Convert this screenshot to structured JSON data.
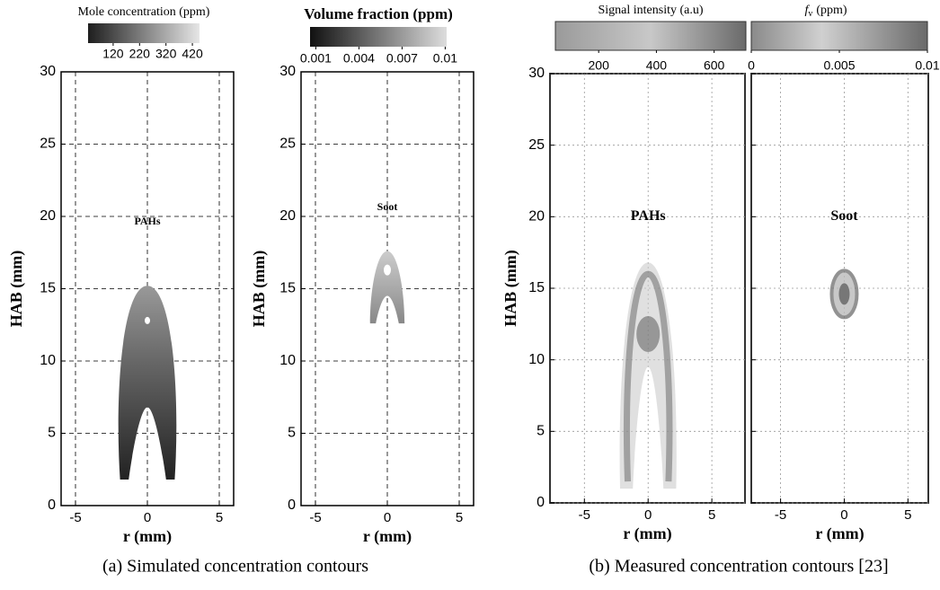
{
  "chart_data": [
    {
      "type": "contour",
      "xlabel": "r (mm)",
      "ylabel": "HAB (mm)",
      "xlim": [
        -6,
        6
      ],
      "ylim": [
        0,
        30
      ],
      "xticks": [
        -5,
        0,
        5
      ],
      "yticks": [
        0,
        5,
        10,
        15,
        20,
        25,
        30
      ],
      "grid": true,
      "annotation": "PAHs",
      "colorbar_label": "Mole concentration (ppm)",
      "clim": [
        25,
        447
      ],
      "cticks": [
        120,
        220,
        320,
        420
      ]
    },
    {
      "type": "contour",
      "xlabel": "r (mm)",
      "ylabel": "HAB (mm)",
      "xlim": [
        -6,
        6
      ],
      "ylim": [
        0,
        30
      ],
      "xticks": [
        -5,
        0,
        5
      ],
      "yticks": [
        0,
        5,
        10,
        15,
        20,
        25,
        30
      ],
      "grid": true,
      "annotation": "Soot",
      "colorbar_label": "Volume fraction (ppm)",
      "clim": [
        0.0006,
        0.0101
      ],
      "cticks": [
        0.001,
        0.004,
        0.007,
        0.01
      ]
    },
    {
      "type": "contour",
      "xlabel": "r (mm)",
      "ylabel": "HAB (mm)",
      "xlim": [
        -7.7,
        7.6
      ],
      "ylim": [
        0,
        30
      ],
      "xticks": [
        -5,
        0,
        5
      ],
      "yticks": [
        0,
        5,
        10,
        15,
        20,
        25,
        30
      ],
      "grid": true,
      "annotation": "PAHs",
      "colorbar_label": "Signal intensity (a.u)",
      "clim": [
        50,
        710
      ],
      "cticks": [
        200,
        400,
        600
      ]
    },
    {
      "type": "contour",
      "xlabel": "r (mm)",
      "ylabel": "HAB (mm)",
      "xlim": [
        -7.3,
        6.6
      ],
      "ylim": [
        0,
        30
      ],
      "xticks": [
        -5,
        0,
        5
      ],
      "grid": true,
      "annotation": "Soot",
      "colorbar_symbol": "f",
      "colorbar_symbol_sub": "v",
      "colorbar_label": "(ppm)",
      "clim": [
        0,
        0.01
      ],
      "cticks": [
        0,
        0.005,
        0.01
      ]
    }
  ],
  "captions": [
    "(a) Simulated concentration contours",
    "(b) Measured concentration contours [23]"
  ]
}
